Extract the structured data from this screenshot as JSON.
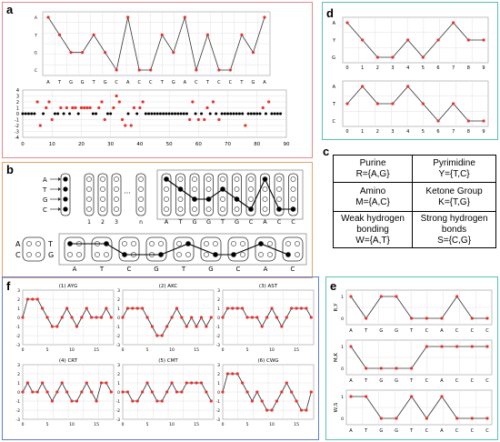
{
  "colors": {
    "panel_a": "#e9878f",
    "panel_b": "#e8a06a",
    "panel_d": "#59c2b4",
    "panel_e": "#59c2b4",
    "panel_f": "#5b7fd0",
    "marker": "#e8322c",
    "line": "#333333"
  },
  "labels": {
    "a": "a",
    "b": "b",
    "c": "c",
    "d": "d",
    "e": "e",
    "f": "f"
  },
  "panel_a": {
    "sequence": [
      "A",
      "T",
      "G",
      "G",
      "T",
      "G",
      "C",
      "A",
      "C",
      "C",
      "T",
      "G",
      "A",
      "C",
      "T",
      "C",
      "C",
      "T",
      "G",
      "A"
    ],
    "row_letters": [
      "A",
      "T",
      "G",
      "C"
    ],
    "dot_y_ticks": [
      "4",
      "3",
      "2",
      "1",
      "0",
      "-1",
      "-2",
      "-3",
      "-4"
    ],
    "dot_x_ticks": [
      "0",
      "10",
      "20",
      "30",
      "40",
      "50",
      "60",
      "70",
      "80",
      "90"
    ]
  },
  "panel_b": {
    "bases": [
      "A",
      "T",
      "G",
      "C"
    ],
    "column_numbers": [
      "1",
      "2",
      "3",
      "n"
    ],
    "ellipsis": "···",
    "path_letters": [
      "A",
      "T",
      "G",
      "G",
      "T",
      "G",
      "C",
      "A",
      "C",
      "C"
    ],
    "lower_left_letters": [
      "A",
      "C",
      "T",
      "G"
    ],
    "lower_sequence": [
      "A",
      "T",
      "C",
      "G",
      "T",
      "G",
      "C",
      "A",
      "C"
    ]
  },
  "panel_c": {
    "cells": [
      [
        "Purine",
        "R={A,G}"
      ],
      [
        "Pyrimidine",
        "Y={T,C}"
      ],
      [
        "Amino",
        "M={A,C}"
      ],
      [
        "Ketone Group",
        "K={T,G}"
      ],
      [
        "Weak hydrogen",
        "bonding",
        "W={A,T}"
      ],
      [
        "Strong hydrogen",
        "bonds",
        "S={C,G}"
      ]
    ]
  },
  "panel_d": {
    "top_y_labels": [
      "A",
      "Y",
      "G"
    ],
    "bottom_y_labels": [
      "A",
      "T",
      "C"
    ],
    "x_ticks": [
      "0",
      "1",
      "2",
      "3",
      "4",
      "5",
      "6",
      "7",
      "8",
      "9"
    ]
  },
  "panel_e": {
    "y_labels": [
      "R,Y",
      "M,K",
      "W,S"
    ],
    "sequence": [
      "A",
      "T",
      "G",
      "G",
      "T",
      "C",
      "A",
      "C",
      "C",
      "C"
    ]
  },
  "panel_f": {
    "titles": [
      "(1) AYG",
      "(2) AKC",
      "(3) AST",
      "(4) CRT",
      "(5) CMT",
      "(6) CWG"
    ],
    "y_ticks": [
      "3",
      "2",
      "1",
      "0",
      "-1",
      "-2",
      "-3"
    ],
    "x_ticks": [
      "0",
      "5",
      "10",
      "15"
    ]
  },
  "chart_data": [
    {
      "type": "line",
      "id": "a-top",
      "categories": [
        "A",
        "T",
        "G",
        "G",
        "T",
        "G",
        "C",
        "A",
        "C",
        "C",
        "T",
        "G",
        "A",
        "C",
        "T",
        "C",
        "C",
        "T",
        "G",
        "A"
      ],
      "values": [
        4,
        3,
        2,
        2,
        3,
        2,
        1,
        4,
        1,
        1,
        3,
        2,
        4,
        1,
        3,
        1,
        1,
        3,
        2,
        4
      ],
      "ylabels": [
        "A",
        "T",
        "G",
        "C"
      ]
    },
    {
      "type": "scatter",
      "id": "a-bottom",
      "xlim": [
        0,
        90
      ],
      "ylim": [
        -4,
        4
      ],
      "points": [
        [
          3,
          0
        ],
        [
          5,
          2
        ],
        [
          6,
          -2
        ],
        [
          8,
          1
        ],
        [
          9,
          2
        ],
        [
          10,
          -1
        ],
        [
          13,
          1
        ],
        [
          15,
          1
        ],
        [
          17,
          1
        ],
        [
          18,
          1
        ],
        [
          20,
          1
        ],
        [
          21,
          1
        ],
        [
          22,
          1
        ],
        [
          23,
          1
        ],
        [
          26,
          1
        ],
        [
          27,
          2
        ],
        [
          28,
          -1
        ],
        [
          31,
          1
        ],
        [
          32,
          3
        ],
        [
          33,
          2
        ],
        [
          34,
          -1
        ],
        [
          35,
          -2
        ],
        [
          37,
          -2
        ],
        [
          38,
          1
        ],
        [
          40,
          1
        ],
        [
          41,
          2
        ],
        [
          43,
          0
        ],
        [
          57,
          -1
        ],
        [
          58,
          2
        ],
        [
          60,
          -1
        ],
        [
          62,
          -1
        ],
        [
          63,
          1
        ],
        [
          65,
          2
        ],
        [
          67,
          -1
        ],
        [
          74,
          0
        ],
        [
          76,
          -2
        ],
        [
          82,
          1
        ],
        [
          84,
          2
        ]
      ]
    },
    {
      "type": "line",
      "id": "d-top",
      "x": [
        0,
        1,
        2,
        3,
        4,
        5,
        6,
        7,
        8,
        9
      ],
      "values": [
        2,
        1,
        0,
        0,
        1,
        0,
        1,
        2,
        1,
        1
      ]
    },
    {
      "type": "line",
      "id": "d-bottom",
      "x": [
        0,
        1,
        2,
        3,
        4,
        5,
        6,
        7,
        8,
        9
      ],
      "values": [
        1,
        2,
        1,
        1,
        2,
        1,
        0,
        1,
        0,
        0
      ]
    },
    {
      "type": "line",
      "id": "e-ry",
      "values": [
        1,
        0,
        1,
        1,
        0,
        0,
        0,
        1,
        0,
        0
      ]
    },
    {
      "type": "line",
      "id": "e-mk",
      "values": [
        1,
        0,
        0,
        0,
        0,
        1,
        1,
        1,
        1,
        1
      ]
    },
    {
      "type": "line",
      "id": "e-ws",
      "values": [
        1,
        1,
        0,
        0,
        1,
        0,
        1,
        0,
        0,
        0
      ]
    },
    {
      "type": "line",
      "id": "f1",
      "values": [
        0,
        2,
        2,
        2,
        1,
        0,
        -1,
        -1,
        0,
        1,
        0,
        -1,
        0,
        1,
        0,
        0,
        0,
        1,
        0
      ]
    },
    {
      "type": "line",
      "id": "f2",
      "values": [
        0,
        1,
        1,
        1,
        1,
        0,
        -1,
        -2,
        -2,
        -1,
        0,
        1,
        0,
        -1,
        0,
        -1,
        0,
        -1,
        0
      ]
    },
    {
      "type": "line",
      "id": "f3",
      "values": [
        0,
        1,
        1,
        1,
        1,
        0,
        0,
        0,
        -1,
        0,
        1,
        0,
        -1,
        0,
        1,
        1,
        1,
        1,
        0
      ]
    },
    {
      "type": "line",
      "id": "f4",
      "values": [
        0,
        1,
        0,
        0,
        1,
        0,
        -1,
        0,
        1,
        0,
        -1,
        -1,
        0,
        1,
        0,
        -1,
        1,
        1,
        0
      ]
    },
    {
      "type": "line",
      "id": "f5",
      "values": [
        0,
        0,
        -1,
        -1,
        0,
        1,
        0,
        -1,
        -1,
        0,
        1,
        0,
        0,
        1,
        1,
        1,
        1,
        0,
        -1
      ]
    },
    {
      "type": "line",
      "id": "f6",
      "values": [
        0,
        2,
        2,
        2,
        1,
        0,
        -1,
        0,
        -1,
        -2,
        -2,
        -1,
        0,
        1,
        0,
        -1,
        -2,
        -2,
        0
      ]
    }
  ]
}
